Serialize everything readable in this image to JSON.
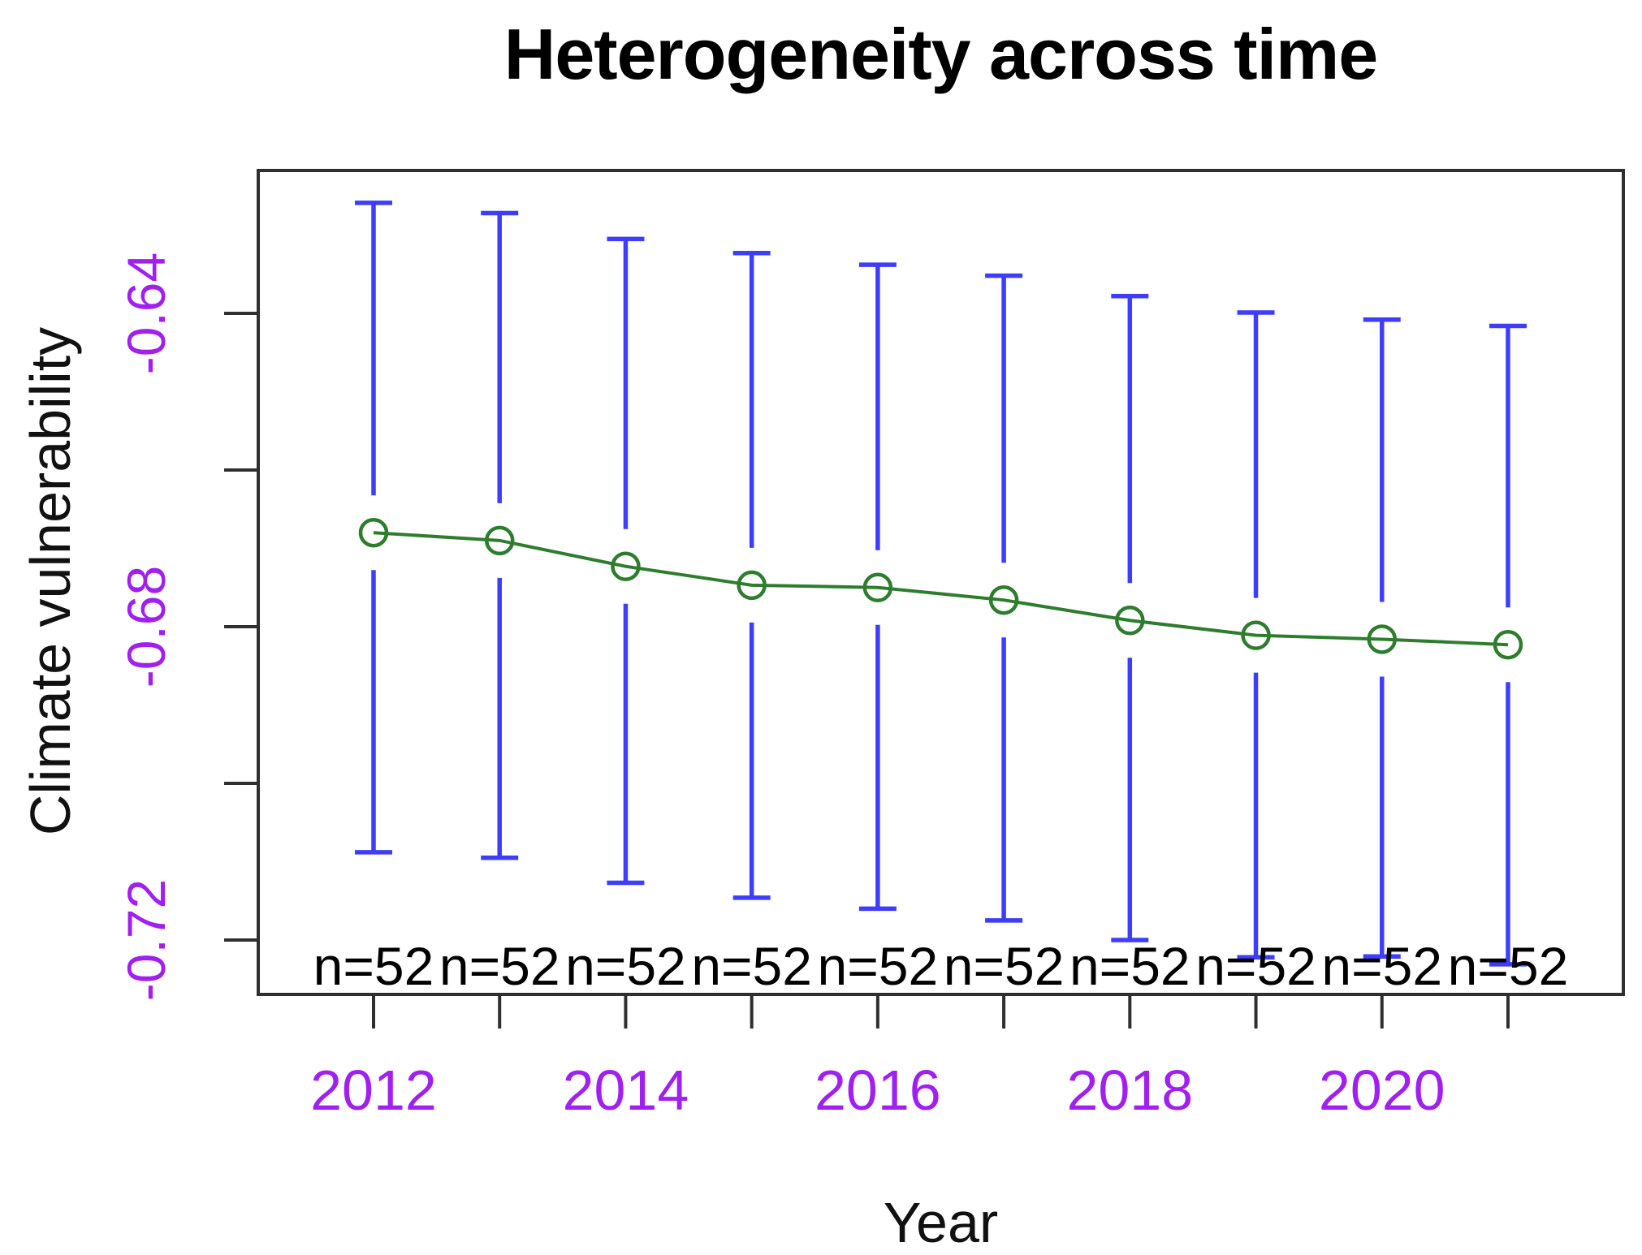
{
  "chart_data": {
    "type": "line",
    "title": "Heterogeneity across time",
    "xlabel": "Year",
    "ylabel": "Climate vulnerability",
    "x": [
      2012,
      2013,
      2014,
      2015,
      2016,
      2017,
      2018,
      2019,
      2020,
      2021
    ],
    "series": [
      {
        "name": "mean-climate-vulnerability",
        "values": [
          -0.668,
          -0.669,
          -0.6723,
          -0.6747,
          -0.675,
          -0.6766,
          -0.6792,
          -0.6811,
          -0.6816,
          -0.6823
        ]
      }
    ],
    "error_upper": [
      -0.6259,
      -0.6272,
      -0.6305,
      -0.6323,
      -0.6338,
      -0.6352,
      -0.6378,
      -0.6399,
      -0.6408,
      -0.6416
    ],
    "error_lower": [
      -0.7088,
      -0.7095,
      -0.7127,
      -0.7146,
      -0.716,
      -0.7175,
      -0.72,
      -0.7222,
      -0.7221,
      -0.7231
    ],
    "point_labels": [
      "n=52",
      "n=52",
      "n=52",
      "n=52",
      "n=52",
      "n=52",
      "n=52",
      "n=52",
      "n=52",
      "n=52"
    ],
    "y_ticks": [
      -0.64,
      -0.66,
      -0.68,
      -0.7,
      -0.72
    ],
    "y_labeled_ticks": [
      {
        "value": -0.64,
        "label": "-0.64"
      },
      {
        "value": -0.68,
        "label": "-0.68"
      },
      {
        "value": -0.72,
        "label": "-0.72"
      }
    ],
    "x_minor_ticks": [
      2012,
      2013,
      2014,
      2015,
      2016,
      2017,
      2018,
      2019,
      2020,
      2021
    ],
    "x_labeled_ticks": [
      {
        "value": 2012,
        "label": "2012"
      },
      {
        "value": 2014,
        "label": "2014"
      },
      {
        "value": 2016,
        "label": "2016"
      },
      {
        "value": 2018,
        "label": "2018"
      },
      {
        "value": 2020,
        "label": "2020"
      }
    ],
    "ylim": [
      -0.727,
      -0.622
    ],
    "xlim": [
      2011.1,
      2021.9
    ],
    "grid": false,
    "legend_position": "none",
    "colors": {
      "error_bar": "#3D3DFB",
      "mean_line": "#2E7D2E",
      "marker": "#2E7D2E",
      "tick_label": "#A020F0",
      "text": "#000000",
      "frame": "#2F2F2F"
    }
  }
}
